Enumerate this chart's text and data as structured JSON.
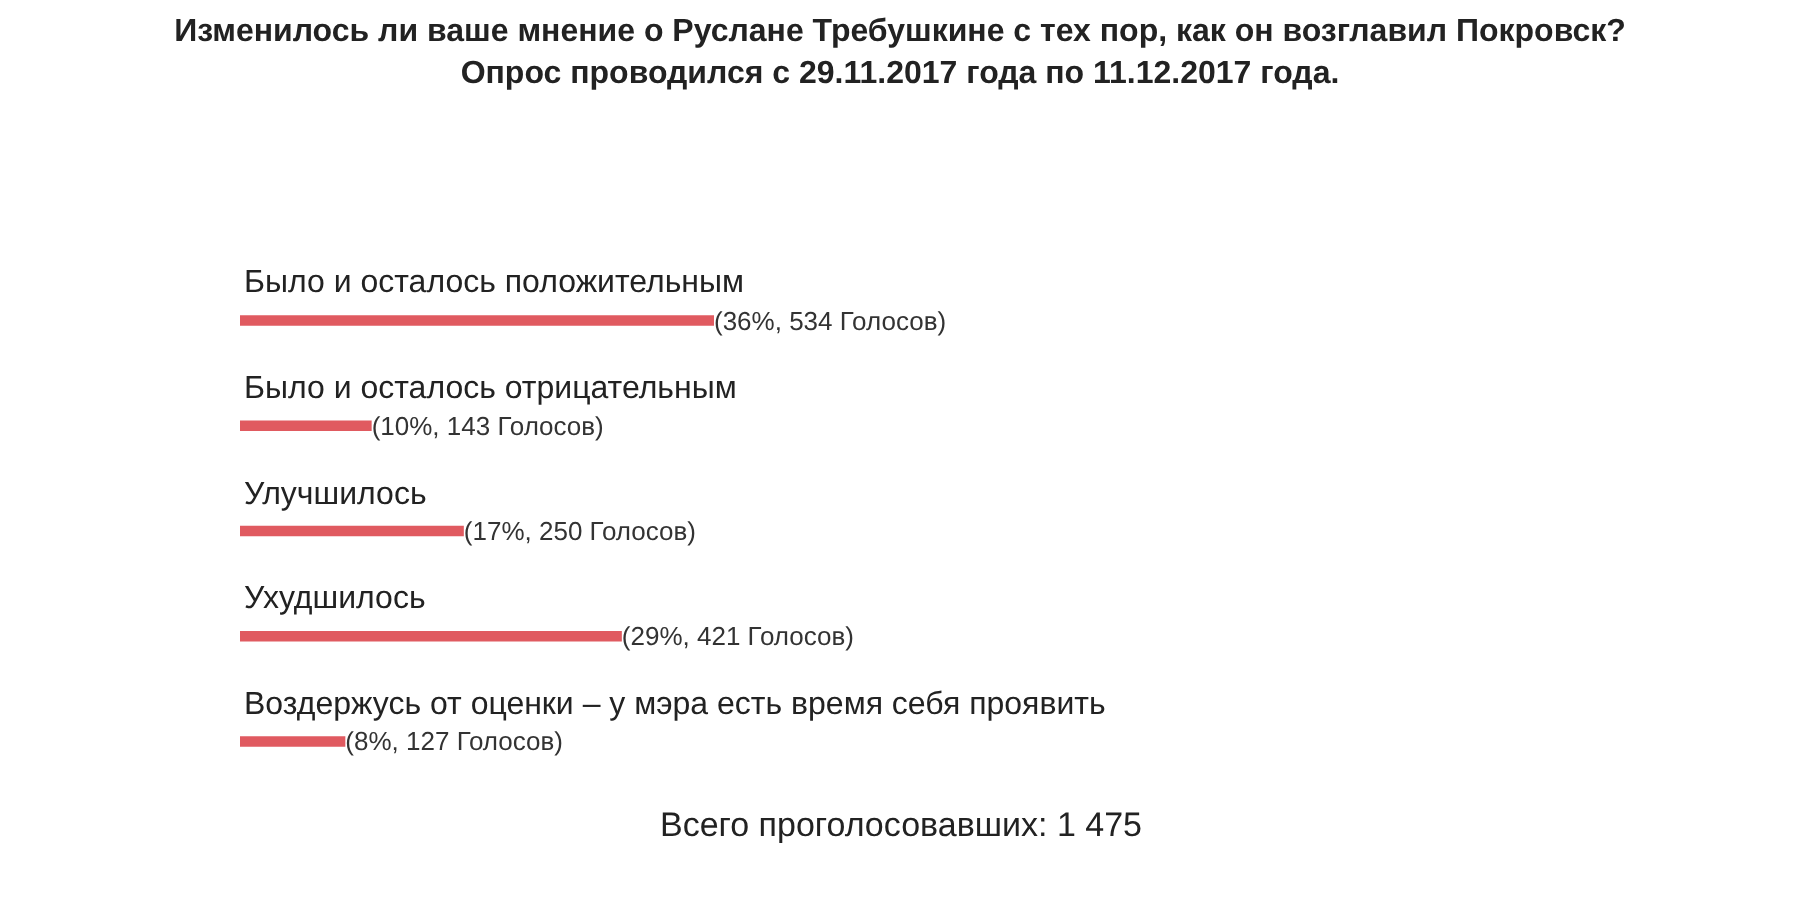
{
  "chart_data": {
    "type": "bar",
    "orientation": "horizontal",
    "title": "Изменилось ли ваше мнение о Руслане Требушкине с тех пор, как он возглавил Покровск?\nОпрос проводился с 29.11.2017 года по 11.12.2017 года.",
    "categories": [
      "Было и осталось положительным",
      "Было и осталось отрицательным",
      "Улучшилось",
      "Ухудшилось",
      "Воздержусь от оценки – у мэра есть время себя проявить"
    ],
    "values": [
      36,
      10,
      17,
      29,
      8
    ],
    "value_labels": [
      "(36%, 534 Голосов)",
      "(10%, 143 Голосов)",
      "(17%, 250 Голосов)",
      "(29%, 421 Голосов)",
      "(8%, 127 Голосов)"
    ],
    "color": "#e05a60",
    "legend": false,
    "annotations": [
      "Всего проголосовавших: 1 475"
    ]
  }
}
